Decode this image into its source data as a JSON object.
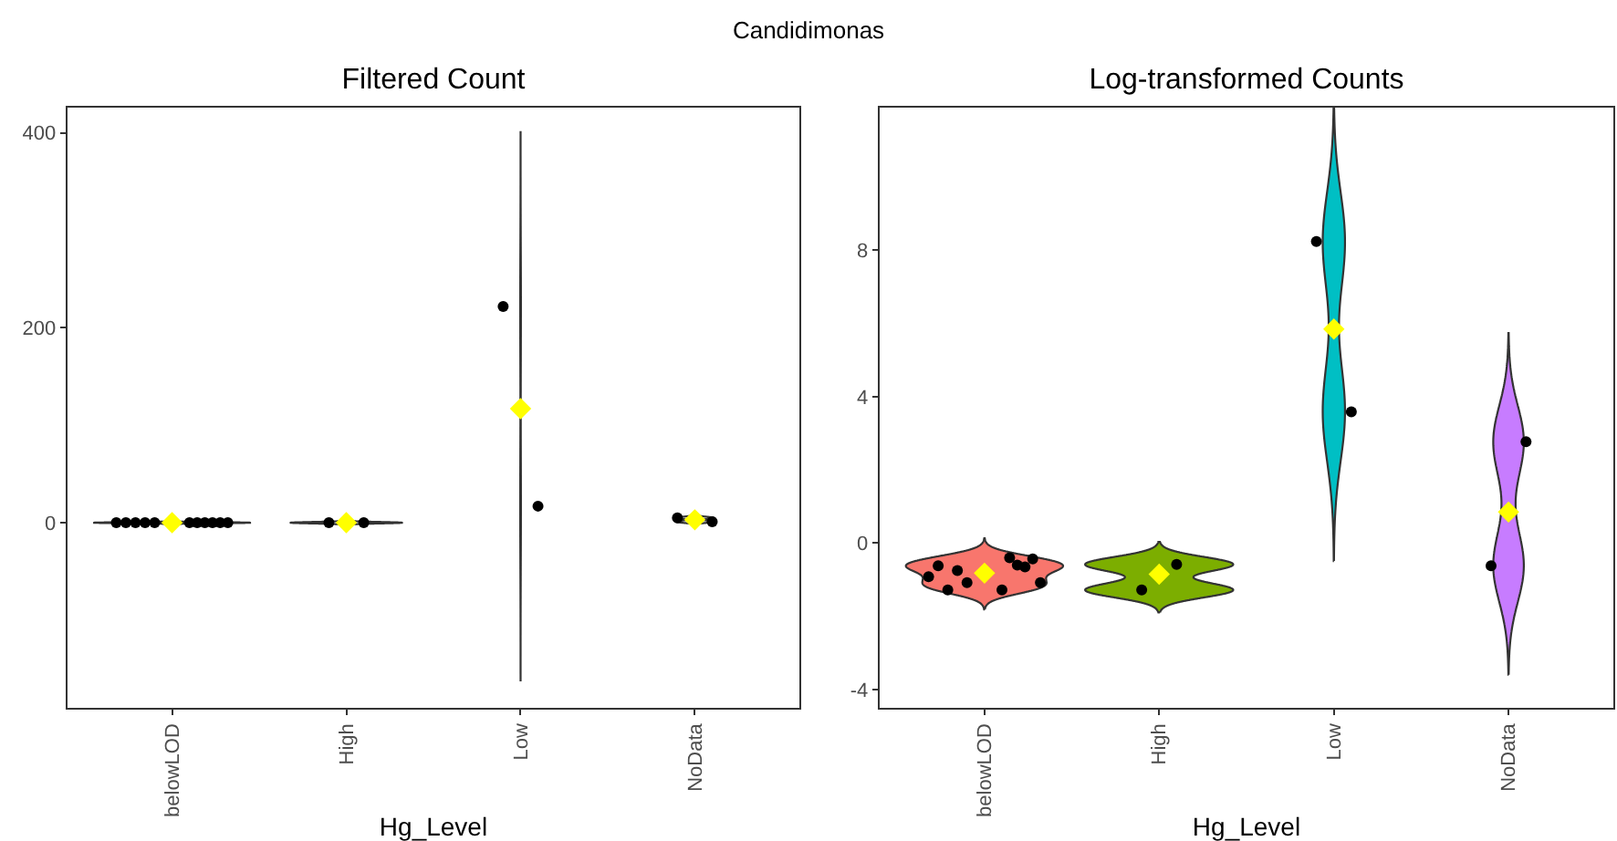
{
  "chart_data": [
    {
      "type": "scatter",
      "title": "Filtered Count",
      "xlabel": "Hg_Level",
      "annotations": [
        "Candidimonas"
      ],
      "categories": [
        "belowLOD",
        "High",
        "Low",
        "NoData"
      ],
      "colors": [
        "#ffffff",
        "#ffffff",
        "#ffffff",
        "#ffffff"
      ],
      "marker": "circle",
      "ylim": [
        -190,
        426
      ],
      "yticks": [
        0,
        200,
        400
      ],
      "series": [
        {
          "color": "#000000",
          "x": [
            "belowLOD",
            "belowLOD",
            "belowLOD",
            "belowLOD",
            "belowLOD",
            "belowLOD",
            "belowLOD",
            "belowLOD",
            "belowLOD",
            "belowLOD",
            "belowLOD"
          ],
          "values": [
            0,
            0,
            0,
            0,
            0,
            0,
            0,
            0,
            0,
            0,
            0
          ]
        },
        {
          "color": "#000000",
          "x": [
            "High",
            "High"
          ],
          "values": [
            0,
            0
          ]
        },
        {
          "color": "#000000",
          "x": [
            "Low",
            "Low"
          ],
          "values": [
            222,
            17
          ]
        },
        {
          "color": "#000000",
          "x": [
            "NoData",
            "NoData"
          ],
          "values": [
            5,
            1
          ]
        },
        {
          "color": "#ffff00",
          "marker": "diamond",
          "x": [
            "belowLOD",
            "High",
            "Low",
            "NoData"
          ],
          "values": [
            0,
            0,
            117,
            3
          ]
        }
      ]
    },
    {
      "type": "scatter",
      "title": "Log-transformed Counts",
      "xlabel": "Hg_Level",
      "categories": [
        "belowLOD",
        "High",
        "Low",
        "NoData"
      ],
      "colors": [
        "#f8766d",
        "#7cae00",
        "#00bfc4",
        "#c77cff"
      ],
      "marker": "circle",
      "ylim": [
        -4.5,
        11.9
      ],
      "yticks": [
        -4,
        0,
        4,
        8
      ],
      "series": [
        {
          "color": "#000000",
          "x": [
            "belowLOD",
            "belowLOD",
            "belowLOD",
            "belowLOD",
            "belowLOD",
            "belowLOD",
            "belowLOD",
            "belowLOD",
            "belowLOD",
            "belowLOD",
            "belowLOD"
          ],
          "values": [
            -0.92,
            -0.62,
            -1.28,
            -0.75,
            -1.08,
            -1.28,
            -0.4,
            -0.6,
            -0.65,
            -0.43,
            -1.08
          ]
        },
        {
          "color": "#000000",
          "x": [
            "High",
            "High"
          ],
          "values": [
            -1.28,
            -0.58
          ]
        },
        {
          "color": "#000000",
          "x": [
            "Low",
            "Low"
          ],
          "values": [
            8.24,
            3.59
          ]
        },
        {
          "color": "#000000",
          "x": [
            "NoData",
            "NoData"
          ],
          "values": [
            -0.62,
            2.77
          ]
        },
        {
          "color": "#ffff00",
          "marker": "diamond",
          "x": [
            "belowLOD",
            "High",
            "Low",
            "NoData"
          ],
          "values": [
            -0.82,
            -0.85,
            5.85,
            0.85
          ]
        }
      ]
    }
  ]
}
